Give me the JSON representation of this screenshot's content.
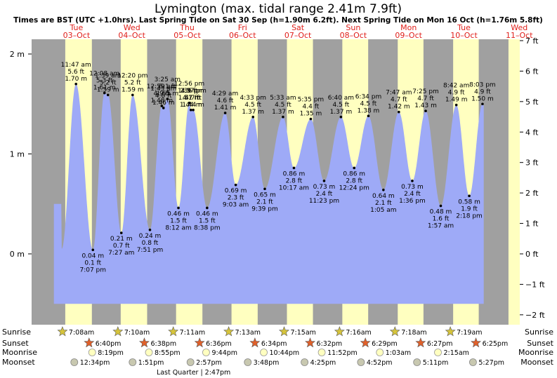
{
  "header": {
    "title": "Lymington (max. tidal range 2.41m 7.9ft)",
    "subtitle": "Times are BST (UTC +1.0hrs). Last Spring Tide on Sat 30 Sep (h=1.90m 6.2ft). Next Spring Tide on Mon 16 Oct (h=1.76m 5.8ft)"
  },
  "days": [
    {
      "dow": "Tue",
      "date": "03–Oct"
    },
    {
      "dow": "Wed",
      "date": "04–Oct"
    },
    {
      "dow": "Thu",
      "date": "05–Oct"
    },
    {
      "dow": "Fri",
      "date": "06–Oct"
    },
    {
      "dow": "Sat",
      "date": "07–Oct"
    },
    {
      "dow": "Sun",
      "date": "08–Oct"
    },
    {
      "dow": "Mon",
      "date": "09–Oct"
    },
    {
      "dow": "Tue",
      "date": "10–Oct"
    },
    {
      "dow": "Wed",
      "date": "11–Oct"
    }
  ],
  "chart_data": {
    "type": "area",
    "title": "Lymington (max. tidal range 2.41m 7.9ft)",
    "x_unit": "hours since 00:00 03-Oct BST",
    "xlim": [
      -5,
      190
    ],
    "ylim": [
      -0.6,
      2.07
    ],
    "left_axis": {
      "unit": "m",
      "ticks": [
        {
          "v": 2,
          "label": "2 m"
        },
        {
          "v": 1,
          "label": "1 m"
        },
        {
          "v": 0,
          "label": "0 m"
        }
      ]
    },
    "right_axis": {
      "unit": "ft",
      "ticks": [
        {
          "ft": 7,
          "label": "7 ft"
        },
        {
          "ft": 6,
          "label": "6 ft"
        },
        {
          "ft": 5,
          "label": "5 ft"
        },
        {
          "ft": 4,
          "label": "4 ft"
        },
        {
          "ft": 3,
          "label": "3 ft"
        },
        {
          "ft": 2,
          "label": "2 ft"
        },
        {
          "ft": 1,
          "label": "1 ft"
        },
        {
          "ft": 0,
          "label": "0 ft"
        },
        {
          "ft": -1,
          "label": "−1 ft"
        },
        {
          "ft": -2,
          "label": "−2 ft"
        }
      ]
    },
    "colors": {
      "tide_fill": "#9eaaf7",
      "day_band": "#ffffc0",
      "night_band": "#a0a0a0"
    },
    "daylight": [
      {
        "rise": 7.13,
        "set": 18.67
      },
      {
        "rise": 31.17,
        "set": 42.63
      },
      {
        "rise": 55.18,
        "set": 66.6
      },
      {
        "rise": 79.22,
        "set": 90.57
      },
      {
        "rise": 103.25,
        "set": 114.53
      },
      {
        "rise": 127.27,
        "set": 138.48
      },
      {
        "rise": 151.3,
        "set": 162.45
      },
      {
        "rise": 175.32,
        "set": 186.42
      }
    ],
    "tides": [
      {
        "t": 11.78,
        "h": 1.7,
        "m": "1.70 m",
        "ft": "5.6 ft",
        "time": "11:47 am"
      },
      {
        "t": 19.12,
        "h": 0.04,
        "m": "0.04 m",
        "ft": "0.1 ft",
        "time": "7:07 pm"
      },
      {
        "t": 24.13,
        "h": 1.61,
        "m": "1.61 m",
        "ft": "5.3 ft",
        "time": "12:08 am"
      },
      {
        "t": 25.65,
        "h": 1.59,
        "m": "1.59 m",
        "ft": "5.2 ft",
        "time": "1:39 am"
      },
      {
        "t": 31.45,
        "h": 0.21,
        "m": "0.21 m",
        "ft": "0.7 ft",
        "time": "7:27 am"
      },
      {
        "t": 36.33,
        "h": 1.59,
        "m": "1.59 m",
        "ft": "5.2 ft",
        "time": "12:20 pm"
      },
      {
        "t": 43.85,
        "h": 0.24,
        "m": "0.24 m",
        "ft": "0.8 ft",
        "time": "7:51 pm"
      },
      {
        "t": 48.98,
        "h": 1.48,
        "m": "1.48 m",
        "ft": "4.9 ft",
        "time": "12:59 am"
      },
      {
        "t": 49.72,
        "h": 1.46,
        "m": "1.46 m",
        "ft": "4.8 ft",
        "time": "1:43 am"
      },
      {
        "t": 51.42,
        "h": 1.55,
        "m": "1.55 m",
        "ft": "5.1 ft",
        "time": "3:25 am"
      },
      {
        "t": 56.2,
        "h": 0.46,
        "m": "0.46 m",
        "ft": "1.5 ft",
        "time": "8:12 am"
      },
      {
        "t": 60.93,
        "h": 1.51,
        "m": "1.51 m",
        "ft": "4.9 ft",
        "time": "12:56 pm"
      },
      {
        "t": 61.6,
        "h": 1.44,
        "m": "1.44 m",
        "ft": "4.7 ft",
        "time": "1:36 pm"
      },
      {
        "t": 62.62,
        "h": 1.44,
        "m": "1.44 m",
        "ft": "4.7 ft",
        "time": "2:37 pm"
      },
      {
        "t": 68.63,
        "h": 0.46,
        "m": "0.46 m",
        "ft": "1.5 ft",
        "time": "8:38 pm"
      },
      {
        "t": 76.48,
        "h": 1.41,
        "m": "1.41 m",
        "ft": "4.6 ft",
        "time": "4:29 am"
      },
      {
        "t": 81.05,
        "h": 0.69,
        "m": "0.69 m",
        "ft": "2.3 ft",
        "time": "9:03 am"
      },
      {
        "t": 88.55,
        "h": 1.37,
        "m": "1.37 m",
        "ft": "4.5 ft",
        "time": "4:33 pm"
      },
      {
        "t": 93.65,
        "h": 0.65,
        "m": "0.65 m",
        "ft": "2.1 ft",
        "time": "9:39 pm"
      },
      {
        "t": 101.55,
        "h": 1.37,
        "m": "1.37 m",
        "ft": "4.5 ft",
        "time": "5:33 am"
      },
      {
        "t": 106.28,
        "h": 0.86,
        "m": "0.86 m",
        "ft": "2.8 ft",
        "time": "10:17 am"
      },
      {
        "t": 113.58,
        "h": 1.35,
        "m": "1.35 m",
        "ft": "4.4 ft",
        "time": "5:35 pm"
      },
      {
        "t": 119.38,
        "h": 0.73,
        "m": "0.73 m",
        "ft": "2.4 ft",
        "time": "11:23 pm"
      },
      {
        "t": 126.67,
        "h": 1.37,
        "m": "1.37 m",
        "ft": "4.5 ft",
        "time": "6:40 am"
      },
      {
        "t": 132.4,
        "h": 0.86,
        "m": "0.86 m",
        "ft": "2.8 ft",
        "time": "12:24 pm"
      },
      {
        "t": 138.57,
        "h": 1.38,
        "m": "1.38 m",
        "ft": "4.5 ft",
        "time": "6:34 pm"
      },
      {
        "t": 145.08,
        "h": 0.64,
        "m": "0.64 m",
        "ft": "2.1 ft",
        "time": "1:05 am"
      },
      {
        "t": 151.78,
        "h": 1.42,
        "m": "1.42 m",
        "ft": "4.7 ft",
        "time": "7:47 am"
      },
      {
        "t": 157.6,
        "h": 0.73,
        "m": "0.73 m",
        "ft": "2.4 ft",
        "time": "1:36 pm"
      },
      {
        "t": 163.42,
        "h": 1.43,
        "m": "1.43 m",
        "ft": "4.7 ft",
        "time": "7:25 pm"
      },
      {
        "t": 169.95,
        "h": 0.48,
        "m": "0.48 m",
        "ft": "1.6 ft",
        "time": "1:57 am"
      },
      {
        "t": 176.7,
        "h": 1.49,
        "m": "1.49 m",
        "ft": "4.9 ft",
        "time": "8:42 am"
      },
      {
        "t": 182.3,
        "h": 0.58,
        "m": "0.58 m",
        "ft": "1.9 ft",
        "time": "2:18 pm"
      },
      {
        "t": 188.05,
        "h": 1.5,
        "m": "1.50 m",
        "ft": "4.9 ft",
        "time": "8:03 pm"
      }
    ]
  },
  "almanac": {
    "row_labels": {
      "sunrise": "Sunrise",
      "sunset": "Sunset",
      "moonrise": "Moonrise",
      "moonset": "Moonset"
    },
    "sunrise": [
      {
        "t": 7.13,
        "time": "7:08am"
      },
      {
        "t": 31.17,
        "time": "7:10am"
      },
      {
        "t": 55.18,
        "time": "7:11am"
      },
      {
        "t": 79.22,
        "time": "7:13am"
      },
      {
        "t": 103.25,
        "time": "7:15am"
      },
      {
        "t": 127.27,
        "time": "7:16am"
      },
      {
        "t": 151.3,
        "time": "7:18am"
      },
      {
        "t": 175.32,
        "time": "7:19am"
      }
    ],
    "sunset": [
      {
        "t": 18.67,
        "time": "6:40pm"
      },
      {
        "t": 42.63,
        "time": "6:38pm"
      },
      {
        "t": 66.6,
        "time": "6:36pm"
      },
      {
        "t": 90.57,
        "time": "6:34pm"
      },
      {
        "t": 114.53,
        "time": "6:32pm"
      },
      {
        "t": 138.48,
        "time": "6:29pm"
      },
      {
        "t": 162.45,
        "time": "6:27pm"
      },
      {
        "t": 186.42,
        "time": "6:25pm"
      }
    ],
    "moonrise": [
      {
        "t": 20.32,
        "time": "8:19pm"
      },
      {
        "t": 44.92,
        "time": "8:55pm"
      },
      {
        "t": 69.73,
        "time": "9:44pm"
      },
      {
        "t": 94.73,
        "time": "10:44pm"
      },
      {
        "t": 119.87,
        "time": "11:52pm"
      },
      {
        "t": 145.05,
        "time": "1:03am"
      },
      {
        "t": 170.25,
        "time": "2:15am"
      }
    ],
    "moonset": [
      {
        "t": 12.57,
        "time": "12:34pm"
      },
      {
        "t": 37.85,
        "time": "1:51pm"
      },
      {
        "t": 62.95,
        "time": "2:57pm"
      },
      {
        "t": 87.8,
        "time": "3:48pm"
      },
      {
        "t": 112.42,
        "time": "4:25pm"
      },
      {
        "t": 136.87,
        "time": "4:52pm"
      },
      {
        "t": 161.18,
        "time": "5:11pm"
      },
      {
        "t": 185.45,
        "time": "5:27pm"
      }
    ],
    "moon_phase": {
      "t": 62.78,
      "label": "Last Quarter | 2:47pm"
    }
  }
}
